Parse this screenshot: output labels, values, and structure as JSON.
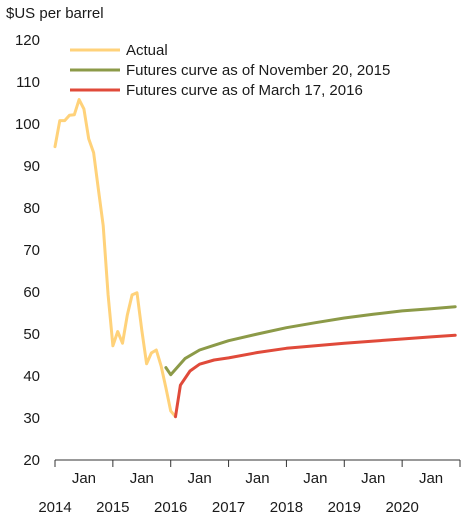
{
  "chart_data": {
    "type": "line",
    "ylabel": "$US per barrel",
    "ylim": [
      20,
      120
    ],
    "yticks": [
      "20",
      "30",
      "40",
      "50",
      "60",
      "70",
      "80",
      "90",
      "100",
      "110",
      "120"
    ],
    "xlim": [
      2014.0,
      2021.0
    ],
    "xticks": [
      {
        "x": 2014,
        "month": "Jan",
        "year": "2014"
      },
      {
        "x": 2015,
        "month": "Jan",
        "year": "2015"
      },
      {
        "x": 2016,
        "month": "Jan",
        "year": "2016"
      },
      {
        "x": 2017,
        "month": "Jan",
        "year": "2017"
      },
      {
        "x": 2018,
        "month": "Jan",
        "year": "2018"
      },
      {
        "x": 2019,
        "month": "Jan",
        "year": "2019"
      },
      {
        "x": 2020,
        "month": "Jan",
        "year": "2020"
      }
    ],
    "legend_position": "top-left",
    "series": [
      {
        "name": "Actual",
        "color": "#ffd27a",
        "x": [
          2014.0,
          2014.083,
          2014.167,
          2014.25,
          2014.333,
          2014.417,
          2014.5,
          2014.583,
          2014.667,
          2014.75,
          2014.833,
          2014.917,
          2015.0,
          2015.083,
          2015.167,
          2015.25,
          2015.333,
          2015.417,
          2015.5,
          2015.583,
          2015.667,
          2015.75,
          2015.833,
          2015.917,
          2016.0,
          2016.083
        ],
        "values": [
          94.6,
          100.8,
          100.8,
          102.1,
          102.2,
          105.8,
          103.6,
          96.5,
          93.2,
          84.4,
          75.8,
          59.3,
          47.2,
          50.6,
          47.8,
          54.5,
          59.3,
          59.8,
          50.9,
          42.9,
          45.5,
          46.2,
          42.4,
          37.2,
          31.7,
          30.3
        ]
      },
      {
        "name": "Futures curve as of November 20, 2015",
        "color": "#8c9a48",
        "x": [
          2015.917,
          2016.0,
          2016.25,
          2016.5,
          2016.75,
          2017.0,
          2017.5,
          2018.0,
          2018.5,
          2019.0,
          2019.5,
          2020.0,
          2020.5,
          2020.917
        ],
        "values": [
          42.0,
          40.3,
          44.2,
          46.2,
          47.3,
          48.4,
          50.0,
          51.5,
          52.7,
          53.8,
          54.7,
          55.5,
          56.0,
          56.5
        ]
      },
      {
        "name": "Futures curve as of March 17, 2016",
        "color": "#e04a3a",
        "x": [
          2016.083,
          2016.167,
          2016.333,
          2016.5,
          2016.75,
          2017.0,
          2017.5,
          2018.0,
          2018.5,
          2019.0,
          2019.5,
          2020.0,
          2020.5,
          2020.917
        ],
        "values": [
          30.3,
          37.8,
          41.2,
          42.8,
          43.8,
          44.3,
          45.6,
          46.6,
          47.2,
          47.8,
          48.3,
          48.8,
          49.3,
          49.7
        ]
      }
    ]
  }
}
